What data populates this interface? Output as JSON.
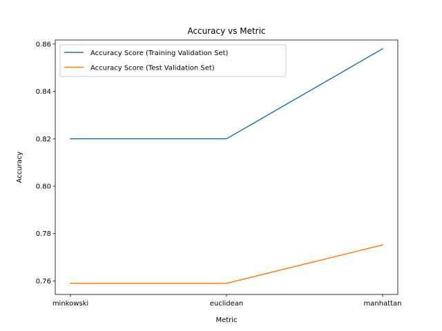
{
  "chart_data": {
    "type": "line",
    "title": "Accuracy vs Metric",
    "xlabel": "Metric",
    "ylabel": "Accuracy",
    "categories": [
      "minkowski",
      "euclidean",
      "manhattan"
    ],
    "series": [
      {
        "name": "Accuracy Score (Training Validation Set)",
        "values": [
          0.82,
          0.82,
          0.858
        ],
        "color": "#1f77b4"
      },
      {
        "name": "Accuracy Score (Test Validation Set)",
        "values": [
          0.759,
          0.759,
          0.7752
        ],
        "color": "#ff7f0e"
      }
    ],
    "ylim": [
      0.7543,
      0.8617
    ],
    "yticks": [
      0.76,
      0.78,
      0.8,
      0.82,
      0.84,
      0.86
    ],
    "ytick_labels": [
      "0.76",
      "0.78",
      "0.80",
      "0.82",
      "0.84",
      "0.86"
    ],
    "grid": false,
    "legend_position": "top-left"
  }
}
